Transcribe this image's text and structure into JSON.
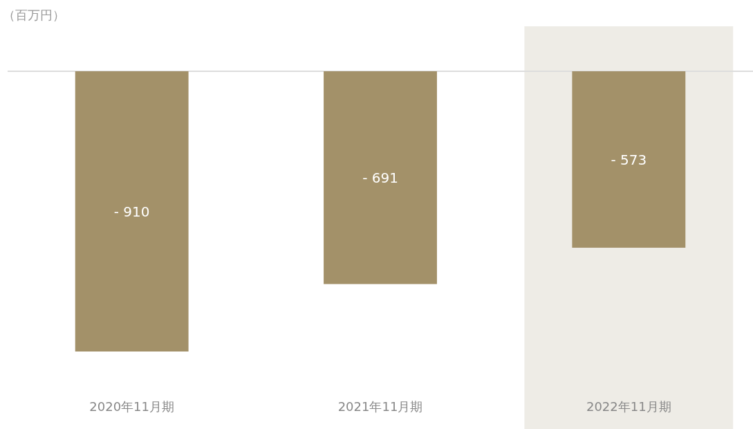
{
  "chart_data": {
    "type": "bar",
    "ylabel": "（百万円）",
    "categories": [
      "2020年11月期",
      "2021年11月期",
      "2022年11月期"
    ],
    "values": [
      -910,
      -691,
      -573
    ],
    "value_labels": [
      "- 910",
      "- 691",
      "- 573"
    ],
    "color": "#a39169",
    "bands": [
      {
        "axis": "x",
        "from": "2022年11月期",
        "to": "2022年11月期",
        "color": "#eeece6"
      }
    ]
  }
}
